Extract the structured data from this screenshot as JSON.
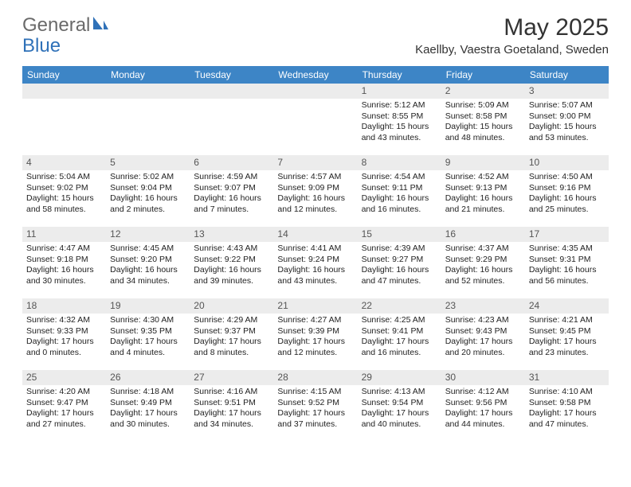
{
  "brand": {
    "part1": "General",
    "part2": "Blue"
  },
  "title": "May 2025",
  "location": "Kaellby, Vaestra Goetaland, Sweden",
  "colors": {
    "header_bg": "#3d85c6",
    "header_text": "#ffffff",
    "daynum_bg": "#ececec",
    "text": "#222222",
    "brand_gray": "#6a6a6a",
    "brand_blue": "#2f71b8",
    "page_bg": "#ffffff"
  },
  "day_headers": [
    "Sunday",
    "Monday",
    "Tuesday",
    "Wednesday",
    "Thursday",
    "Friday",
    "Saturday"
  ],
  "weeks": [
    [
      {
        "n": "",
        "lines": []
      },
      {
        "n": "",
        "lines": []
      },
      {
        "n": "",
        "lines": []
      },
      {
        "n": "",
        "lines": []
      },
      {
        "n": "1",
        "lines": [
          "Sunrise: 5:12 AM",
          "Sunset: 8:55 PM",
          "Daylight: 15 hours",
          "and 43 minutes."
        ]
      },
      {
        "n": "2",
        "lines": [
          "Sunrise: 5:09 AM",
          "Sunset: 8:58 PM",
          "Daylight: 15 hours",
          "and 48 minutes."
        ]
      },
      {
        "n": "3",
        "lines": [
          "Sunrise: 5:07 AM",
          "Sunset: 9:00 PM",
          "Daylight: 15 hours",
          "and 53 minutes."
        ]
      }
    ],
    [
      {
        "n": "4",
        "lines": [
          "Sunrise: 5:04 AM",
          "Sunset: 9:02 PM",
          "Daylight: 15 hours",
          "and 58 minutes."
        ]
      },
      {
        "n": "5",
        "lines": [
          "Sunrise: 5:02 AM",
          "Sunset: 9:04 PM",
          "Daylight: 16 hours",
          "and 2 minutes."
        ]
      },
      {
        "n": "6",
        "lines": [
          "Sunrise: 4:59 AM",
          "Sunset: 9:07 PM",
          "Daylight: 16 hours",
          "and 7 minutes."
        ]
      },
      {
        "n": "7",
        "lines": [
          "Sunrise: 4:57 AM",
          "Sunset: 9:09 PM",
          "Daylight: 16 hours",
          "and 12 minutes."
        ]
      },
      {
        "n": "8",
        "lines": [
          "Sunrise: 4:54 AM",
          "Sunset: 9:11 PM",
          "Daylight: 16 hours",
          "and 16 minutes."
        ]
      },
      {
        "n": "9",
        "lines": [
          "Sunrise: 4:52 AM",
          "Sunset: 9:13 PM",
          "Daylight: 16 hours",
          "and 21 minutes."
        ]
      },
      {
        "n": "10",
        "lines": [
          "Sunrise: 4:50 AM",
          "Sunset: 9:16 PM",
          "Daylight: 16 hours",
          "and 25 minutes."
        ]
      }
    ],
    [
      {
        "n": "11",
        "lines": [
          "Sunrise: 4:47 AM",
          "Sunset: 9:18 PM",
          "Daylight: 16 hours",
          "and 30 minutes."
        ]
      },
      {
        "n": "12",
        "lines": [
          "Sunrise: 4:45 AM",
          "Sunset: 9:20 PM",
          "Daylight: 16 hours",
          "and 34 minutes."
        ]
      },
      {
        "n": "13",
        "lines": [
          "Sunrise: 4:43 AM",
          "Sunset: 9:22 PM",
          "Daylight: 16 hours",
          "and 39 minutes."
        ]
      },
      {
        "n": "14",
        "lines": [
          "Sunrise: 4:41 AM",
          "Sunset: 9:24 PM",
          "Daylight: 16 hours",
          "and 43 minutes."
        ]
      },
      {
        "n": "15",
        "lines": [
          "Sunrise: 4:39 AM",
          "Sunset: 9:27 PM",
          "Daylight: 16 hours",
          "and 47 minutes."
        ]
      },
      {
        "n": "16",
        "lines": [
          "Sunrise: 4:37 AM",
          "Sunset: 9:29 PM",
          "Daylight: 16 hours",
          "and 52 minutes."
        ]
      },
      {
        "n": "17",
        "lines": [
          "Sunrise: 4:35 AM",
          "Sunset: 9:31 PM",
          "Daylight: 16 hours",
          "and 56 minutes."
        ]
      }
    ],
    [
      {
        "n": "18",
        "lines": [
          "Sunrise: 4:32 AM",
          "Sunset: 9:33 PM",
          "Daylight: 17 hours",
          "and 0 minutes."
        ]
      },
      {
        "n": "19",
        "lines": [
          "Sunrise: 4:30 AM",
          "Sunset: 9:35 PM",
          "Daylight: 17 hours",
          "and 4 minutes."
        ]
      },
      {
        "n": "20",
        "lines": [
          "Sunrise: 4:29 AM",
          "Sunset: 9:37 PM",
          "Daylight: 17 hours",
          "and 8 minutes."
        ]
      },
      {
        "n": "21",
        "lines": [
          "Sunrise: 4:27 AM",
          "Sunset: 9:39 PM",
          "Daylight: 17 hours",
          "and 12 minutes."
        ]
      },
      {
        "n": "22",
        "lines": [
          "Sunrise: 4:25 AM",
          "Sunset: 9:41 PM",
          "Daylight: 17 hours",
          "and 16 minutes."
        ]
      },
      {
        "n": "23",
        "lines": [
          "Sunrise: 4:23 AM",
          "Sunset: 9:43 PM",
          "Daylight: 17 hours",
          "and 20 minutes."
        ]
      },
      {
        "n": "24",
        "lines": [
          "Sunrise: 4:21 AM",
          "Sunset: 9:45 PM",
          "Daylight: 17 hours",
          "and 23 minutes."
        ]
      }
    ],
    [
      {
        "n": "25",
        "lines": [
          "Sunrise: 4:20 AM",
          "Sunset: 9:47 PM",
          "Daylight: 17 hours",
          "and 27 minutes."
        ]
      },
      {
        "n": "26",
        "lines": [
          "Sunrise: 4:18 AM",
          "Sunset: 9:49 PM",
          "Daylight: 17 hours",
          "and 30 minutes."
        ]
      },
      {
        "n": "27",
        "lines": [
          "Sunrise: 4:16 AM",
          "Sunset: 9:51 PM",
          "Daylight: 17 hours",
          "and 34 minutes."
        ]
      },
      {
        "n": "28",
        "lines": [
          "Sunrise: 4:15 AM",
          "Sunset: 9:52 PM",
          "Daylight: 17 hours",
          "and 37 minutes."
        ]
      },
      {
        "n": "29",
        "lines": [
          "Sunrise: 4:13 AM",
          "Sunset: 9:54 PM",
          "Daylight: 17 hours",
          "and 40 minutes."
        ]
      },
      {
        "n": "30",
        "lines": [
          "Sunrise: 4:12 AM",
          "Sunset: 9:56 PM",
          "Daylight: 17 hours",
          "and 44 minutes."
        ]
      },
      {
        "n": "31",
        "lines": [
          "Sunrise: 4:10 AM",
          "Sunset: 9:58 PM",
          "Daylight: 17 hours",
          "and 47 minutes."
        ]
      }
    ]
  ]
}
